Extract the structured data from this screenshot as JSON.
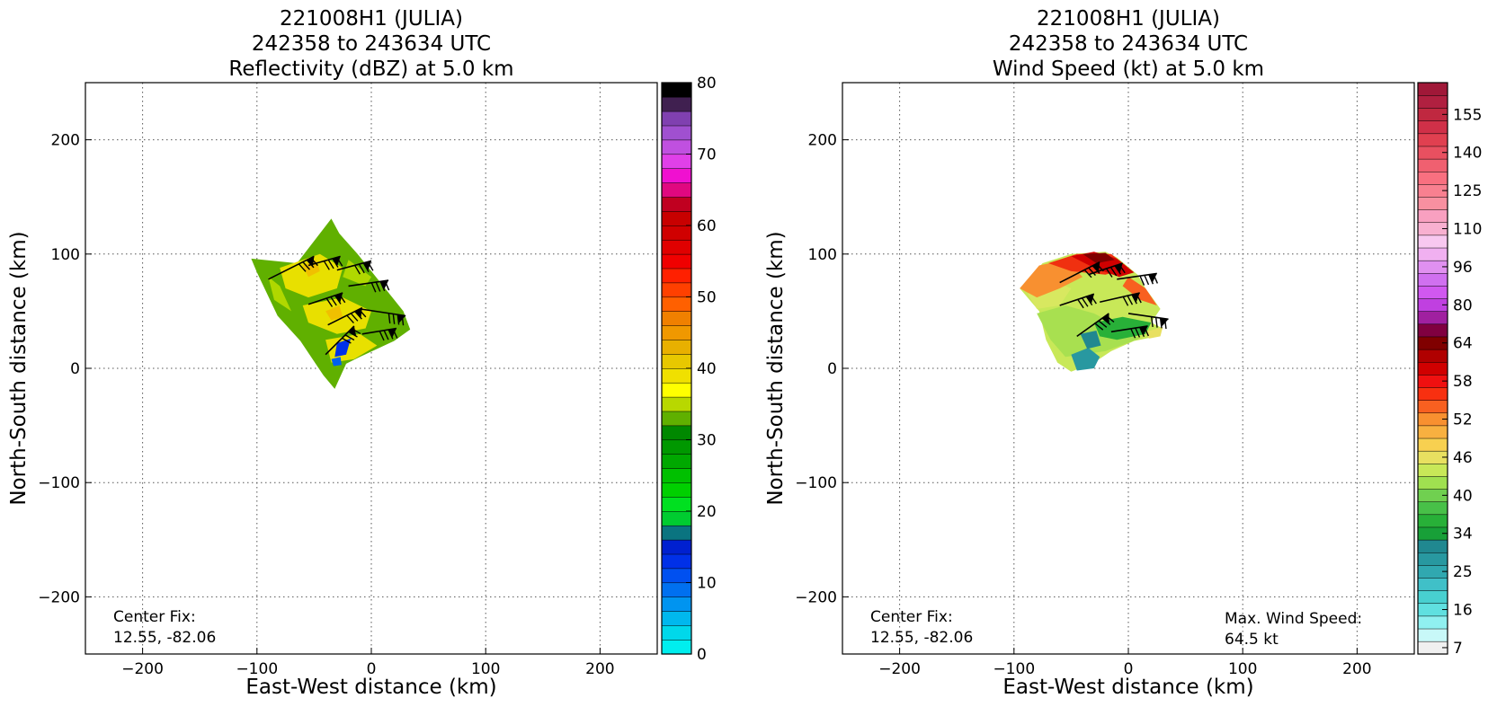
{
  "chart_data": [
    {
      "type": "heatmap",
      "title": [
        "221008H1 (JULIA)",
        "242358 to 243634 UTC",
        "Reflectivity (dBZ) at 5.0 km"
      ],
      "xlabel": "East-West distance (km)",
      "ylabel": "North-South distance (km)",
      "xlim": [
        -250,
        250
      ],
      "ylim": [
        -250,
        250
      ],
      "xticks": [
        -200,
        -100,
        0,
        100,
        200
      ],
      "yticks": [
        -200,
        -100,
        0,
        100,
        200
      ],
      "xtick_labels": [
        "−200",
        "−100",
        "0",
        "100",
        "200"
      ],
      "ytick_labels": [
        "−200",
        "−100",
        "0",
        "100",
        "200"
      ],
      "grid": true,
      "annotations": [
        "Center Fix:",
        "12.55, -82.06"
      ],
      "colorbar": {
        "min": 0,
        "max": 80,
        "tick_values": [
          0,
          10,
          20,
          30,
          40,
          50,
          60,
          70,
          80
        ],
        "tick_labels": [
          "0",
          "10",
          "20",
          "30",
          "40",
          "50",
          "60",
          "70",
          "80"
        ],
        "colors": [
          "#00eeee",
          "#00d8ea",
          "#00b8ee",
          "#0094f0",
          "#0070f0",
          "#0050f0",
          "#0030e8",
          "#0020d0",
          "#0a7480",
          "#00cc30",
          "#00e020",
          "#00d000",
          "#00c000",
          "#00a800",
          "#009800",
          "#008800",
          "#60b000",
          "#b8d800",
          "#ffff00",
          "#f0e000",
          "#e8c800",
          "#e8b000",
          "#f09800",
          "#f08000",
          "#ff6000",
          "#ff4000",
          "#ff2000",
          "#f00000",
          "#e00000",
          "#d00000",
          "#c80000",
          "#c00020",
          "#e00880",
          "#f010d0",
          "#e040e8",
          "#c050e0",
          "#a050d0",
          "#8040b0",
          "#402050",
          "#000000"
        ]
      },
      "data_region": {
        "outline_km": [
          [
            -105,
            96
          ],
          [
            -65,
            92
          ],
          [
            -35,
            131
          ],
          [
            -28,
            118
          ],
          [
            -12,
            100
          ],
          [
            8,
            75
          ],
          [
            28,
            50
          ],
          [
            34,
            34
          ],
          [
            20,
            24
          ],
          [
            -10,
            10
          ],
          [
            -22,
            4
          ],
          [
            -32,
            -18
          ],
          [
            -42,
            -6
          ],
          [
            -62,
            24
          ],
          [
            -82,
            46
          ],
          [
            -100,
            84
          ]
        ],
        "patches": [
          {
            "color": "#e8e000",
            "km": [
              [
                -80,
                88
              ],
              [
                -45,
                100
              ],
              [
                -25,
                88
              ],
              [
                -30,
                70
              ],
              [
                -55,
                62
              ],
              [
                -75,
                70
              ]
            ]
          },
          {
            "color": "#e8e000",
            "km": [
              [
                -60,
                55
              ],
              [
                -25,
                62
              ],
              [
                0,
                50
              ],
              [
                -5,
                35
              ],
              [
                -30,
                30
              ],
              [
                -55,
                40
              ]
            ]
          },
          {
            "color": "#e8e000",
            "km": [
              [
                -40,
                25
              ],
              [
                -10,
                30
              ],
              [
                5,
                20
              ],
              [
                -15,
                8
              ],
              [
                -35,
                5
              ]
            ]
          },
          {
            "color": "#b0d800",
            "km": [
              [
                -90,
                80
              ],
              [
                -80,
                72
              ],
              [
                -70,
                50
              ],
              [
                -85,
                60
              ]
            ]
          },
          {
            "color": "#b0d800",
            "km": [
              [
                -20,
                95
              ],
              [
                0,
                80
              ],
              [
                -5,
                72
              ],
              [
                -25,
                80
              ]
            ]
          },
          {
            "color": "#f0c000",
            "km": [
              [
                -60,
                90
              ],
              [
                -48,
                95
              ],
              [
                -45,
                85
              ],
              [
                -55,
                80
              ]
            ]
          },
          {
            "color": "#f0c000",
            "km": [
              [
                -40,
                50
              ],
              [
                -28,
                55
              ],
              [
                -25,
                45
              ],
              [
                -35,
                42
              ]
            ]
          },
          {
            "color": "#0030e8",
            "km": [
              [
                -30,
                22
              ],
              [
                -18,
                26
              ],
              [
                -22,
                12
              ],
              [
                -32,
                10
              ]
            ]
          },
          {
            "color": "#0060f0",
            "km": [
              [
                -35,
                8
              ],
              [
                -27,
                10
              ],
              [
                -26,
                3
              ],
              [
                -33,
                2
              ]
            ]
          }
        ]
      },
      "wind_barbs_km": [
        {
          "x": -90,
          "y": 78,
          "dx": 40,
          "dy": 20
        },
        {
          "x": -55,
          "y": 90,
          "dx": 28,
          "dy": 8
        },
        {
          "x": -30,
          "y": 86,
          "dx": 30,
          "dy": 8
        },
        {
          "x": -55,
          "y": 56,
          "dx": 30,
          "dy": 10
        },
        {
          "x": -20,
          "y": 72,
          "dx": 35,
          "dy": 5
        },
        {
          "x": -38,
          "y": 38,
          "dx": 30,
          "dy": 15
        },
        {
          "x": -10,
          "y": 52,
          "dx": 40,
          "dy": -6
        },
        {
          "x": -40,
          "y": 12,
          "dx": 25,
          "dy": 25
        },
        {
          "x": -8,
          "y": 30,
          "dx": 30,
          "dy": 5
        }
      ]
    },
    {
      "type": "heatmap",
      "title": [
        "221008H1 (JULIA)",
        "242358 to 243634 UTC",
        "Wind Speed (kt) at 5.0 km"
      ],
      "xlabel": "East-West distance (km)",
      "ylabel": "North-South distance (km)",
      "xlim": [
        -250,
        250
      ],
      "ylim": [
        -250,
        250
      ],
      "xticks": [
        -200,
        -100,
        0,
        100,
        200
      ],
      "yticks": [
        -200,
        -100,
        0,
        100,
        200
      ],
      "xtick_labels": [
        "−200",
        "−100",
        "0",
        "100",
        "200"
      ],
      "ytick_labels": [
        "−200",
        "−100",
        "0",
        "100",
        "200"
      ],
      "grid": true,
      "annotations": [
        "Center Fix:",
        "12.55, -82.06"
      ],
      "max_wind": [
        "Max. Wind Speed:",
        "64.5 kt"
      ],
      "colorbar": {
        "tick_labels": [
          "7",
          "16",
          "25",
          "34",
          "40",
          "46",
          "52",
          "58",
          "64",
          "80",
          "96",
          "110",
          "125",
          "140",
          "155"
        ],
        "tick_band_index": [
          0,
          3,
          6,
          9,
          12,
          15,
          18,
          21,
          24,
          27,
          30,
          33,
          36,
          39,
          42
        ],
        "colors": [
          "#f0f0f0",
          "#c8f8f8",
          "#90f0f0",
          "#60e0e0",
          "#48d0d0",
          "#40c0c8",
          "#30a8b0",
          "#2898a0",
          "#208890",
          "#18a038",
          "#28b038",
          "#48c048",
          "#70d050",
          "#a0e050",
          "#c8e858",
          "#e8e060",
          "#f8d050",
          "#f8b040",
          "#f89030",
          "#f86020",
          "#f83010",
          "#f01010",
          "#d00000",
          "#b00000",
          "#800000",
          "#800040",
          "#a020a0",
          "#c040e0",
          "#d058f0",
          "#d070f0",
          "#e090f0",
          "#f0b0f0",
          "#f8c8f0",
          "#f8b0d0",
          "#f8a0c0",
          "#f890a0",
          "#f88090",
          "#f87080",
          "#f06070",
          "#e85060",
          "#e04050",
          "#d03048",
          "#c02840",
          "#b02040",
          "#a01838"
        ]
      },
      "data_region": {
        "outline_km": [
          [
            -95,
            70
          ],
          [
            -75,
            92
          ],
          [
            -50,
            100
          ],
          [
            -20,
            102
          ],
          [
            -10,
            97
          ],
          [
            8,
            82
          ],
          [
            15,
            70
          ],
          [
            28,
            52
          ],
          [
            20,
            40
          ],
          [
            30,
            35
          ],
          [
            25,
            28
          ],
          [
            5,
            24
          ],
          [
            -15,
            15
          ],
          [
            -30,
            5
          ],
          [
            -50,
            -3
          ],
          [
            -62,
            5
          ],
          [
            -72,
            25
          ],
          [
            -78,
            50
          ]
        ],
        "patches": [
          {
            "color": "#a8e050",
            "km": [
              [
                -80,
                48
              ],
              [
                -55,
                55
              ],
              [
                -30,
                48
              ],
              [
                -5,
                35
              ],
              [
                10,
                26
              ],
              [
                -20,
                15
              ],
              [
                -55,
                10
              ],
              [
                -68,
                25
              ]
            ]
          },
          {
            "color": "#d8e860",
            "km": [
              [
                -88,
                65
              ],
              [
                -70,
                78
              ],
              [
                -50,
                70
              ],
              [
                -60,
                55
              ],
              [
                -80,
                52
              ]
            ]
          },
          {
            "color": "#28b038",
            "km": [
              [
                -30,
                40
              ],
              [
                -5,
                45
              ],
              [
                20,
                40
              ],
              [
                15,
                30
              ],
              [
                -10,
                25
              ],
              [
                -25,
                28
              ]
            ]
          },
          {
            "color": "#2898a0",
            "km": [
              [
                -50,
                12
              ],
              [
                -35,
                18
              ],
              [
                -25,
                10
              ],
              [
                -30,
                0
              ],
              [
                -45,
                -2
              ]
            ]
          },
          {
            "color": "#208890",
            "km": [
              [
                -42,
                30
              ],
              [
                -28,
                33
              ],
              [
                -24,
                20
              ],
              [
                -36,
                17
              ]
            ]
          },
          {
            "color": "#f89030",
            "km": [
              [
                -95,
                70
              ],
              [
                -78,
                90
              ],
              [
                -55,
                95
              ],
              [
                -40,
                80
              ],
              [
                -60,
                70
              ],
              [
                -80,
                62
              ]
            ]
          },
          {
            "color": "#f03010",
            "km": [
              [
                -70,
                92
              ],
              [
                -45,
                100
              ],
              [
                -15,
                100
              ],
              [
                0,
                88
              ],
              [
                -20,
                82
              ],
              [
                -50,
                85
              ]
            ]
          },
          {
            "color": "#d00000",
            "km": [
              [
                -50,
                98
              ],
              [
                -30,
                102
              ],
              [
                -10,
                96
              ],
              [
                5,
                84
              ],
              [
                -8,
                80
              ],
              [
                -30,
                88
              ]
            ]
          },
          {
            "color": "#800000",
            "km": [
              [
                -40,
                100
              ],
              [
                -20,
                101
              ],
              [
                -12,
                95
              ],
              [
                -28,
                92
              ]
            ]
          },
          {
            "color": "#f86020",
            "km": [
              [
                0,
                80
              ],
              [
                15,
                70
              ],
              [
                25,
                55
              ],
              [
                10,
                60
              ],
              [
                -5,
                72
              ]
            ]
          },
          {
            "color": "#e8e060",
            "km": [
              [
                15,
                32
              ],
              [
                30,
                36
              ],
              [
                28,
                28
              ],
              [
                18,
                26
              ]
            ]
          }
        ]
      },
      "wind_barbs_km": [
        {
          "x": -60,
          "y": 75,
          "dx": 35,
          "dy": 18
        },
        {
          "x": -35,
          "y": 82,
          "dx": 30,
          "dy": 10
        },
        {
          "x": -10,
          "y": 78,
          "dx": 35,
          "dy": 5
        },
        {
          "x": -60,
          "y": 55,
          "dx": 30,
          "dy": 10
        },
        {
          "x": -25,
          "y": 58,
          "dx": 35,
          "dy": 8
        },
        {
          "x": 0,
          "y": 48,
          "dx": 35,
          "dy": -5
        },
        {
          "x": -45,
          "y": 28,
          "dx": 28,
          "dy": 20
        },
        {
          "x": -15,
          "y": 32,
          "dx": 32,
          "dy": 5
        }
      ]
    }
  ]
}
